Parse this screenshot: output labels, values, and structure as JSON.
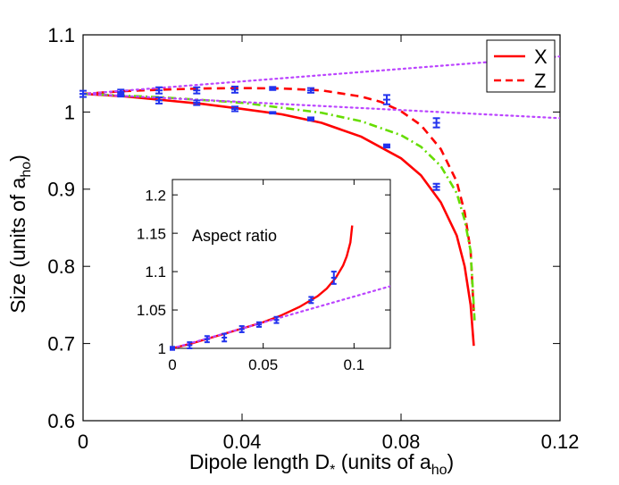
{
  "chart_data": [
    {
      "type": "line",
      "role": "main",
      "xlabel": "Dipole length D",
      "xlabel_subscript": "*",
      "xlabel_suffix": " (units of a",
      "xlabel_unit_subscript": "ho",
      "xlabel_close": ")",
      "ylabel": "Size (units of a",
      "ylabel_unit_subscript": "ho",
      "ylabel_close": ")",
      "xlim": [
        0,
        0.12
      ],
      "ylim": [
        0.6,
        1.1
      ],
      "xticks": [
        0,
        0.04,
        0.08,
        0.12
      ],
      "xtick_labels": [
        "0",
        "0.04",
        "0.08",
        "0.12"
      ],
      "yticks": [
        0.6,
        0.7,
        0.8,
        0.9,
        1.0,
        1.1
      ],
      "ytick_labels": [
        "0.6",
        "0.7",
        "0.8",
        "0.9",
        "1",
        "1.1"
      ],
      "grid": false,
      "legend_position": "top-right",
      "legend": [
        {
          "label": "X",
          "color": "#ff0000",
          "style": "solid"
        },
        {
          "label": "Z",
          "color": "#ff0000",
          "style": "dashed"
        }
      ],
      "series": [
        {
          "name": "X",
          "style": "solid",
          "color": "#ff0000",
          "x": [
            0,
            0.01,
            0.02,
            0.03,
            0.04,
            0.05,
            0.06,
            0.07,
            0.08,
            0.085,
            0.09,
            0.094,
            0.096,
            0.0975,
            0.0983
          ],
          "y": [
            1.0235,
            1.0205,
            1.0155,
            1.0105,
            1.004,
            0.997,
            0.986,
            0.968,
            0.94,
            0.918,
            0.883,
            0.84,
            0.8,
            0.75,
            0.697
          ]
        },
        {
          "name": "Z",
          "style": "dashed",
          "color": "#ff0000",
          "x": [
            0,
            0.01,
            0.02,
            0.03,
            0.04,
            0.05,
            0.06,
            0.07,
            0.075,
            0.08,
            0.085,
            0.09,
            0.094,
            0.096,
            0.0975,
            0.0983
          ],
          "y": [
            1.0235,
            1.027,
            1.029,
            1.0305,
            1.031,
            1.0305,
            1.028,
            1.02,
            1.013,
            1.001,
            0.983,
            0.952,
            0.91,
            0.87,
            0.82,
            0.74
          ]
        },
        {
          "style": "dashdot",
          "color": "#66dd00",
          "x": [
            0,
            0.02,
            0.04,
            0.06,
            0.07,
            0.08,
            0.085,
            0.09,
            0.094,
            0.096,
            0.0975,
            0.0985
          ],
          "y": [
            1.0235,
            1.019,
            1.012,
            0.999,
            0.988,
            0.97,
            0.955,
            0.93,
            0.895,
            0.86,
            0.82,
            0.73
          ]
        },
        {
          "style": "dotted",
          "color": "#bb44ff",
          "x": [
            0,
            0.12
          ],
          "y": [
            1.0235,
            1.072
          ]
        },
        {
          "style": "dotted",
          "color": "#bb44ff",
          "x": [
            0,
            0.12
          ],
          "y": [
            1.0235,
            0.992
          ]
        }
      ],
      "errorbar_series": [
        {
          "color": "#2233ee",
          "x": [
            0,
            0.0095,
            0.0191,
            0.0286,
            0.0382,
            0.0477,
            0.0573,
            0.0764,
            0.0889
          ],
          "y": [
            1.0235,
            1.025,
            1.028,
            1.028,
            1.029,
            1.0305,
            1.028,
            1.016,
            0.986
          ],
          "err": [
            0.004,
            0.004,
            0.004,
            0.004,
            0.004,
            0.002,
            0.003,
            0.006,
            0.006
          ]
        },
        {
          "color": "#2233ee",
          "x": [
            0.0095,
            0.0191,
            0.0286,
            0.0382,
            0.0477,
            0.0573,
            0.0764,
            0.0889
          ],
          "y": [
            1.023,
            1.015,
            1.012,
            1.004,
            0.999,
            0.991,
            0.956,
            0.903
          ],
          "err": [
            0.003,
            0.004,
            0.003,
            0.003,
            0.001,
            0.002,
            0.002,
            0.004
          ]
        }
      ]
    },
    {
      "type": "line",
      "role": "inset",
      "annotation": "Aspect ratio",
      "xlim": [
        0,
        0.12
      ],
      "ylim": [
        1.0,
        1.22
      ],
      "xticks": [
        0,
        0.05,
        0.1
      ],
      "xtick_labels": [
        "0",
        "0.05",
        "0.1"
      ],
      "yticks": [
        1.0,
        1.05,
        1.1,
        1.15,
        1.2
      ],
      "ytick_labels": [
        "1",
        "1.05",
        "1.1",
        "1.15",
        "1.2"
      ],
      "grid": false,
      "series": [
        {
          "style": "solid",
          "color": "#ff0000",
          "x": [
            0,
            0.01,
            0.02,
            0.03,
            0.04,
            0.05,
            0.06,
            0.07,
            0.08,
            0.085,
            0.09,
            0.094,
            0.096,
            0.098,
            0.099
          ],
          "y": [
            1.0,
            1.006,
            1.013,
            1.02,
            1.027,
            1.034,
            1.043,
            1.054,
            1.068,
            1.078,
            1.092,
            1.108,
            1.12,
            1.138,
            1.16
          ]
        },
        {
          "style": "dotted",
          "color": "#bb44ff",
          "x": [
            0,
            0.12
          ],
          "y": [
            1.0,
            1.081
          ]
        }
      ],
      "errorbar_series": [
        {
          "color": "#2233ee",
          "x": [
            0,
            0.0095,
            0.0191,
            0.0286,
            0.0382,
            0.0477,
            0.0573,
            0.0764,
            0.0889
          ],
          "y": [
            1.0,
            1.004,
            1.012,
            1.014,
            1.025,
            1.031,
            1.037,
            1.063,
            1.092
          ],
          "err": [
            0.002,
            0.004,
            0.004,
            0.005,
            0.004,
            0.003,
            0.004,
            0.004,
            0.008
          ]
        }
      ]
    }
  ]
}
